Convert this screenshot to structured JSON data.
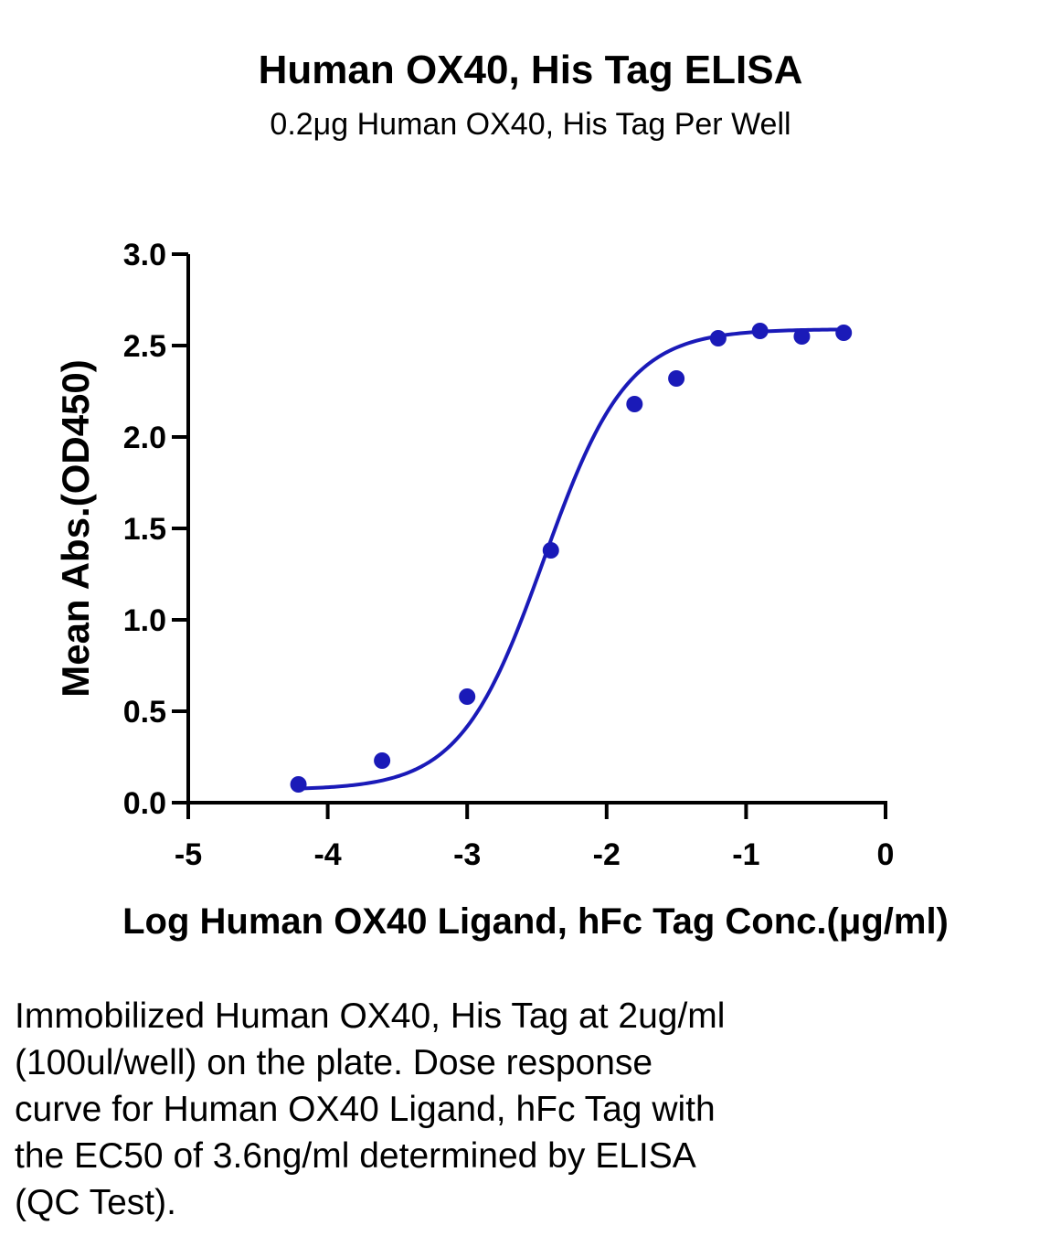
{
  "title": "Human OX40, His Tag ELISA",
  "subtitle": "0.2μg Human OX40, His Tag Per Well",
  "caption_lines": [
    "Immobilized Human OX40, His Tag at 2ug/ml",
    "(100ul/well) on the plate. Dose response",
    "curve for Human OX40 Ligand, hFc Tag with",
    "the EC50 of 3.6ng/ml determined by ELISA",
    "(QC Test)."
  ],
  "colors": {
    "series": "#1a1ab8",
    "axis": "#000000"
  },
  "chart_data": {
    "type": "scatter",
    "xlabel": "Log Human OX40 Ligand, hFc Tag Conc.(μg/ml)",
    "ylabel": "Mean Abs.(OD450)",
    "xlim": [
      -5,
      0
    ],
    "ylim": [
      0,
      3.0
    ],
    "xticks": [
      -5,
      -4,
      -3,
      -2,
      -1,
      0
    ],
    "xtick_labels": [
      "-5",
      "-4",
      "-3",
      "-2",
      "-1",
      "0"
    ],
    "yticks": [
      0,
      0.5,
      1.0,
      1.5,
      2.0,
      2.5,
      3.0
    ],
    "ytick_labels": [
      "0.0",
      "0.5",
      "1.0",
      "1.5",
      "2.0",
      "2.5",
      "3.0"
    ],
    "grid": false,
    "series": [
      {
        "x": [
          -4.21,
          -3.61,
          -3.0,
          -2.4,
          -1.8,
          -1.5,
          -1.2,
          -0.9,
          -0.6,
          -0.3
        ],
        "y": [
          0.1,
          0.23,
          0.58,
          1.38,
          2.18,
          2.32,
          2.54,
          2.58,
          2.55,
          2.57
        ],
        "marker": "circle",
        "fit": {
          "type": "4PL",
          "bottom": 0.07,
          "top": 2.59,
          "log_ec50": -2.45,
          "hill": 1.45
        }
      }
    ]
  }
}
